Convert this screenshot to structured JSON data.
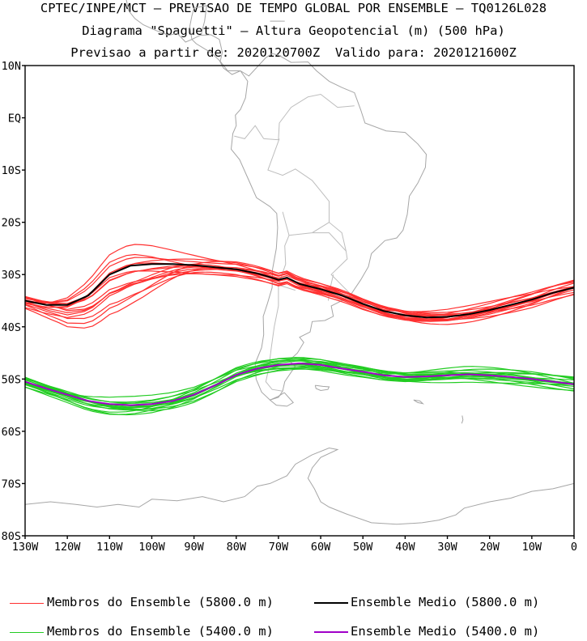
{
  "header": {
    "line1": "CPTEC/INPE/MCT – PREVISAO DE TEMPO GLOBAL POR ENSEMBLE – TQ0126L028",
    "line2": "Diagrama \"Spaguetti\" – Altura Geopotencial (m) (500 hPa)",
    "line3": "Previsao a partir de: 2020120700Z  Valido para: 2020121600Z"
  },
  "map": {
    "projection": "lat-lon",
    "lon_range": [
      -130,
      0
    ],
    "lat_range": [
      -80,
      10
    ],
    "lat_ticks": [
      {
        "value": 10,
        "label": "10N"
      },
      {
        "value": 0,
        "label": "EQ"
      },
      {
        "value": -10,
        "label": "10S"
      },
      {
        "value": -20,
        "label": "20S"
      },
      {
        "value": -30,
        "label": "30S"
      },
      {
        "value": -40,
        "label": "40S"
      },
      {
        "value": -50,
        "label": "50S"
      },
      {
        "value": -60,
        "label": "60S"
      },
      {
        "value": -70,
        "label": "70S"
      },
      {
        "value": -80,
        "label": "80S"
      }
    ],
    "lon_ticks": [
      {
        "value": -130,
        "label": "130W"
      },
      {
        "value": -120,
        "label": "120W"
      },
      {
        "value": -110,
        "label": "110W"
      },
      {
        "value": -100,
        "label": "100W"
      },
      {
        "value": -90,
        "label": "90W"
      },
      {
        "value": -80,
        "label": "80W"
      },
      {
        "value": -70,
        "label": "70W"
      },
      {
        "value": -60,
        "label": "60W"
      },
      {
        "value": -50,
        "label": "50W"
      },
      {
        "value": -40,
        "label": "40W"
      },
      {
        "value": -30,
        "label": "30W"
      },
      {
        "value": -20,
        "label": "20W"
      },
      {
        "value": -10,
        "label": "10W"
      },
      {
        "value": 0,
        "label": "0"
      }
    ],
    "colors": {
      "coast": "#a6a6a6",
      "members_5800": "#ff3030",
      "mean_5800": "#000000",
      "members_5400": "#22cc22",
      "mean_5400": "#a000c8"
    }
  },
  "chart_data": {
    "type": "line",
    "x_axis": "longitude (deg, negative = W)",
    "y_axis": "latitude (deg, negative = S)",
    "series": [
      {
        "name": "Ensemble Medio (5800.0 m)",
        "x": [
          -130,
          -125,
          -120,
          -115,
          -110,
          -105,
          -100,
          -95,
          -90,
          -85,
          -80,
          -75,
          -72,
          -70,
          -68,
          -65,
          -60,
          -55,
          -50,
          -45,
          -40,
          -35,
          -30,
          -25,
          -20,
          -15,
          -10,
          -5,
          0
        ],
        "y": [
          -35,
          -35.8,
          -35.8,
          -34,
          -30,
          -28.3,
          -28,
          -28,
          -28.2,
          -28.6,
          -29,
          -29.8,
          -30.5,
          -31,
          -30.6,
          -31.8,
          -32.8,
          -34,
          -35.6,
          -37,
          -37.8,
          -38.2,
          -38.1,
          -37.6,
          -36.8,
          -35.8,
          -34.8,
          -33.5,
          -32.5
        ]
      },
      {
        "name": "Ensemble Medio (5400.0 m)",
        "x": [
          -130,
          -125,
          -120,
          -115,
          -110,
          -105,
          -100,
          -95,
          -90,
          -85,
          -80,
          -75,
          -70,
          -65,
          -60,
          -55,
          -50,
          -45,
          -40,
          -35,
          -30,
          -25,
          -20,
          -15,
          -10,
          -5,
          0
        ],
        "y": [
          -50.5,
          -51.8,
          -53,
          -54.2,
          -54.8,
          -55,
          -54.8,
          -54.2,
          -53,
          -51.2,
          -49.2,
          -48,
          -47.3,
          -47,
          -47.3,
          -48,
          -48.6,
          -49.3,
          -49.6,
          -49.5,
          -49.3,
          -49.1,
          -49.3,
          -49.6,
          -50,
          -50.5,
          -51
        ]
      }
    ],
    "member_spread": {
      "members_5800_lat_band": [
        -43,
        -25.5
      ],
      "members_5400_lat_band": [
        -57.5,
        -45.5
      ]
    }
  },
  "legend": {
    "members_5800": "Membros do Ensemble (5800.0 m)",
    "mean_5800": "Ensemble Medio (5800.0 m)",
    "members_5400": "Membros do Ensemble (5400.0 m)",
    "mean_5400": "Ensemble Medio (5400.0 m)"
  }
}
